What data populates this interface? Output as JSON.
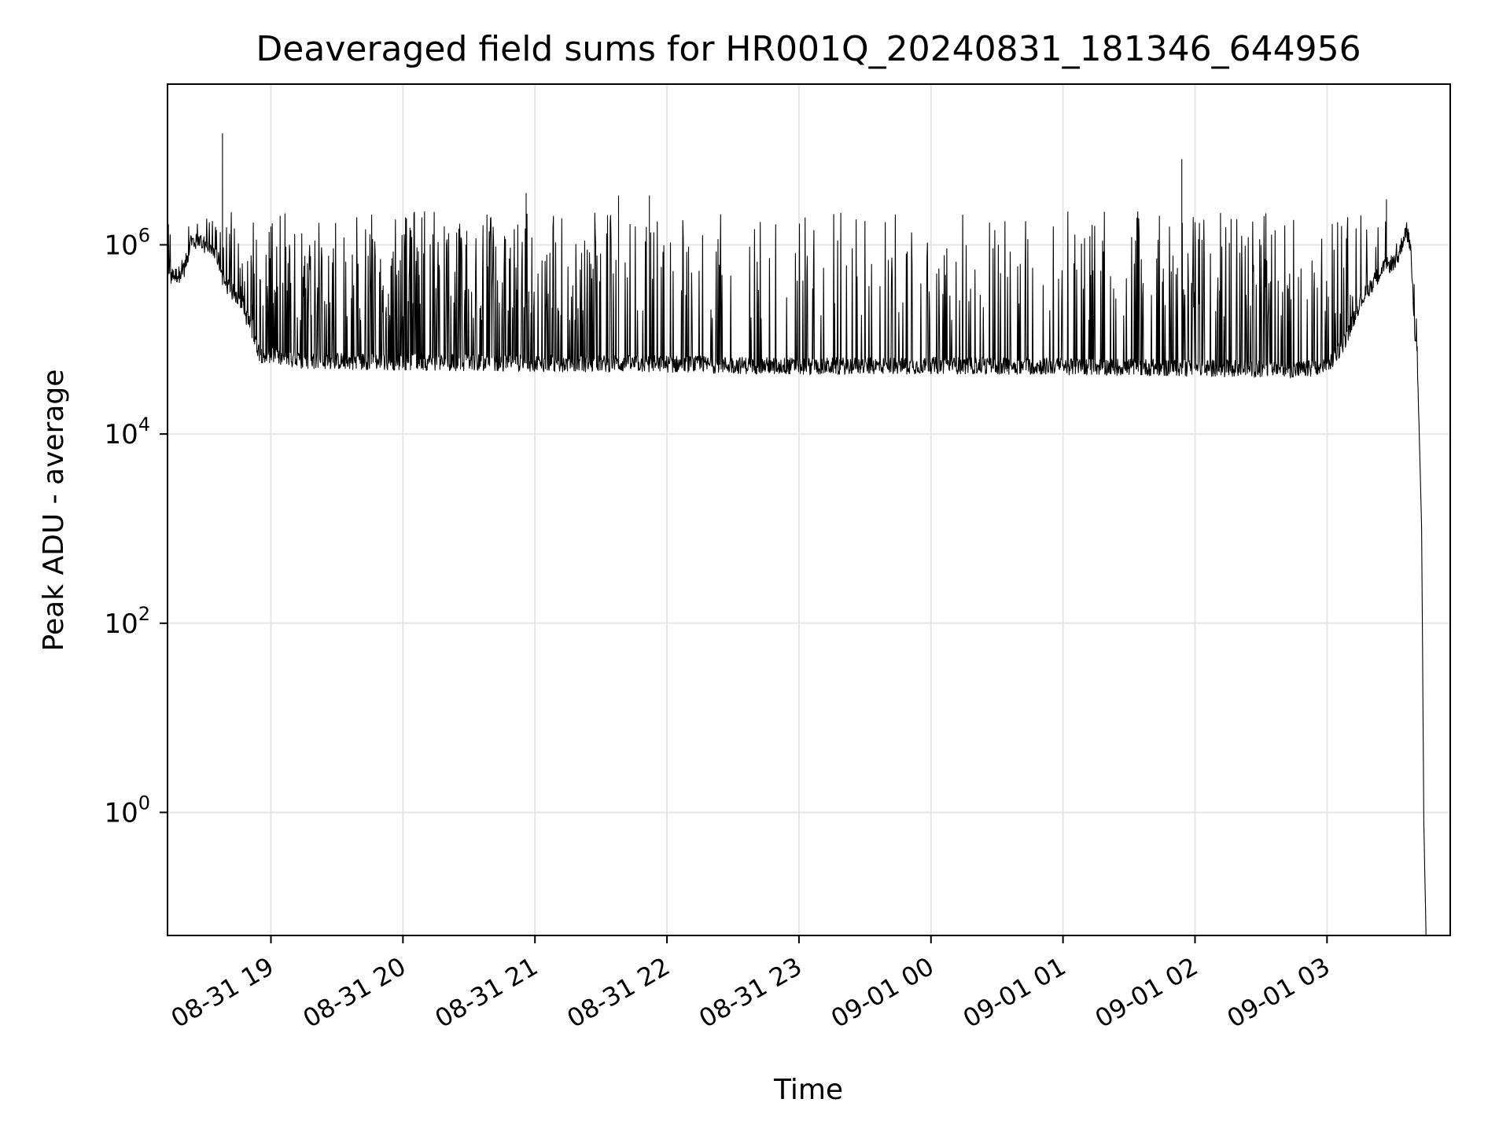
{
  "chart_data": {
    "type": "line",
    "title": "Deaveraged field sums for HR001Q_20240831_181346_644956",
    "xlabel": "Time",
    "ylabel": "Peak ADU - average",
    "yscale": "log",
    "ylim": [
      0.05,
      50000000
    ],
    "xlim": [
      "2024-08-31 18:13",
      "2024-09-01 03:56"
    ],
    "grid": true,
    "line_color": "#000000",
    "grid_color": "#e6e6e6",
    "x_ticks": [
      {
        "value": "2024-08-31 19:00",
        "label": "08-31 19"
      },
      {
        "value": "2024-08-31 20:00",
        "label": "08-31 20"
      },
      {
        "value": "2024-08-31 21:00",
        "label": "08-31 21"
      },
      {
        "value": "2024-08-31 22:00",
        "label": "08-31 22"
      },
      {
        "value": "2024-08-31 23:00",
        "label": "08-31 23"
      },
      {
        "value": "2024-09-01 00:00",
        "label": "09-01 00"
      },
      {
        "value": "2024-09-01 01:00",
        "label": "09-01 01"
      },
      {
        "value": "2024-09-01 02:00",
        "label": "09-01 02"
      },
      {
        "value": "2024-09-01 03:00",
        "label": "09-01 03"
      }
    ],
    "y_ticks": [
      {
        "value": 1,
        "base": "10",
        "exp": "0"
      },
      {
        "value": 100,
        "base": "10",
        "exp": "2"
      },
      {
        "value": 10000,
        "base": "10",
        "exp": "4"
      },
      {
        "value": 1000000,
        "base": "10",
        "exp": "6"
      }
    ],
    "series": [
      {
        "baseline": [
          [
            "2024-08-31 18:13",
            450000
          ],
          [
            "2024-08-31 18:20",
            500000
          ],
          [
            "2024-08-31 18:24",
            1100000
          ],
          [
            "2024-08-31 18:30",
            1000000
          ],
          [
            "2024-08-31 18:35",
            800000
          ],
          [
            "2024-08-31 18:39",
            380000
          ],
          [
            "2024-08-31 18:45",
            280000
          ],
          [
            "2024-08-31 18:50",
            150000
          ],
          [
            "2024-08-31 18:55",
            70000
          ],
          [
            "2024-08-31 19:10",
            60000
          ],
          [
            "2024-08-31 20:00",
            58000
          ],
          [
            "2024-08-31 21:00",
            56000
          ],
          [
            "2024-08-31 22:00",
            55000
          ],
          [
            "2024-08-31 23:00",
            52000
          ],
          [
            "2024-09-01 00:00",
            53000
          ],
          [
            "2024-09-01 01:00",
            52000
          ],
          [
            "2024-09-01 02:00",
            50000
          ],
          [
            "2024-09-01 02:45",
            48000
          ],
          [
            "2024-09-01 03:00",
            50000
          ],
          [
            "2024-09-01 03:08",
            95000
          ],
          [
            "2024-09-01 03:15",
            250000
          ],
          [
            "2024-09-01 03:25",
            550000
          ],
          [
            "2024-09-01 03:32",
            700000
          ],
          [
            "2024-09-01 03:36",
            1500000
          ],
          [
            "2024-09-01 03:38",
            900000
          ],
          [
            "2024-09-01 03:39",
            350000
          ],
          [
            "2024-09-01 03:40",
            90000
          ],
          [
            "2024-09-01 03:41",
            70000
          ],
          [
            "2024-09-01 03:43",
            1000
          ],
          [
            "2024-09-01 03:44",
            0.8
          ],
          [
            "2024-09-01 03:45",
            0.05
          ]
        ],
        "spikes": [
          [
            "2024-08-31 18:38",
            15000000
          ],
          [
            "2024-08-31 20:56",
            3500000
          ],
          [
            "2024-08-31 21:38",
            3300000
          ],
          [
            "2024-08-31 21:52",
            3300000
          ],
          [
            "2024-09-01 01:54",
            8000000
          ],
          [
            "2024-09-01 03:27",
            3000000
          ]
        ]
      }
    ]
  }
}
